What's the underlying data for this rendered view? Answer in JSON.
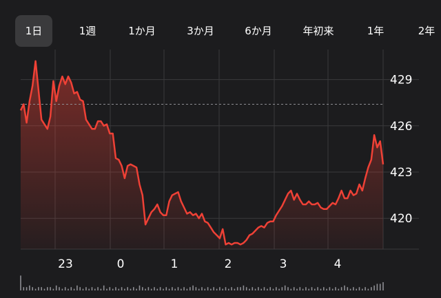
{
  "tabs": [
    {
      "label": "1日",
      "active": true
    },
    {
      "label": "1週"
    },
    {
      "label": "1か月"
    },
    {
      "label": "3か月"
    },
    {
      "label": "6か月"
    },
    {
      "label": "年初来"
    },
    {
      "label": "1年"
    },
    {
      "label": "2年"
    }
  ],
  "colors": {
    "background": "#1c1c1e",
    "line": "#ef4136",
    "grid": "#3a3a3c",
    "tab_active": "#3a3a3c",
    "volume": "#8e8e93"
  },
  "chart_data": {
    "type": "area",
    "title": "",
    "xlabel": "",
    "ylabel": "",
    "x_tick_labels": [
      "23",
      "0",
      "1",
      "2",
      "3",
      "4"
    ],
    "y_tick_labels": [
      "429",
      "426",
      "423",
      "420"
    ],
    "ylim": [
      418.0,
      430.5
    ],
    "reference_line": 427.4,
    "grid": true,
    "series": [
      {
        "values": [
          427.0,
          427.4,
          426.2,
          427.6,
          428.6,
          430.2,
          428.3,
          426.4,
          426.1,
          425.8,
          426.6,
          428.9,
          427.6,
          428.6,
          429.2,
          428.7,
          429.2,
          428.8,
          428.1,
          428.2,
          427.7,
          427.6,
          426.4,
          426.1,
          425.8,
          425.8,
          426.3,
          426.3,
          426.0,
          426.1,
          425.5,
          425.5,
          423.9,
          423.8,
          423.4,
          422.6,
          423.4,
          423.5,
          423.4,
          423.3,
          422.2,
          421.5,
          419.6,
          420.0,
          420.4,
          420.6,
          420.9,
          420.4,
          420.2,
          420.2,
          421.1,
          421.5,
          421.6,
          421.7,
          421.1,
          420.7,
          420.3,
          420.4,
          420.2,
          420.3,
          420.0,
          420.3,
          419.8,
          419.7,
          419.4,
          419.1,
          418.9,
          418.7,
          419.3,
          418.3,
          418.4,
          418.3,
          418.4,
          418.4,
          418.3,
          418.4,
          418.6,
          418.9,
          419.0,
          419.2,
          419.4,
          419.5,
          419.4,
          419.7,
          419.8,
          419.8,
          420.2,
          420.5,
          420.8,
          421.2,
          421.6,
          421.8,
          421.2,
          421.6,
          421.2,
          420.9,
          420.9,
          421.1,
          420.9,
          420.9,
          421.0,
          420.7,
          420.6,
          420.6,
          420.8,
          421.0,
          420.9,
          421.3,
          421.8,
          421.3,
          421.3,
          421.8,
          421.5,
          421.6,
          422.2,
          421.8,
          422.6,
          423.3,
          423.8,
          425.4,
          424.6,
          425.0,
          423.5
        ],
        "volume": [
          9,
          2,
          2,
          3,
          2,
          1,
          2,
          2,
          1,
          2,
          2,
          1,
          3,
          2,
          1,
          2,
          1,
          2,
          1,
          3,
          2,
          1,
          2,
          1,
          2,
          1,
          2,
          1,
          3,
          1,
          2,
          1,
          2,
          1,
          2,
          1,
          2,
          1,
          2,
          1,
          3,
          2,
          1,
          2,
          1,
          2,
          1,
          2,
          1,
          2,
          1,
          2,
          1,
          2,
          1,
          2,
          1,
          2,
          3,
          2,
          1,
          2,
          1,
          2,
          1,
          2,
          1,
          2,
          1,
          2,
          1,
          2,
          1,
          2,
          2,
          3,
          2,
          1,
          2,
          1,
          2,
          1,
          2,
          1,
          2,
          1,
          2,
          1,
          2,
          3,
          2,
          1,
          2,
          1,
          2,
          1,
          2,
          1,
          2,
          1,
          2,
          1,
          2,
          1,
          2,
          1,
          2,
          1,
          2,
          3,
          2,
          1,
          2,
          1,
          2,
          1,
          2,
          1,
          2,
          3,
          4,
          4,
          5
        ]
      }
    ]
  }
}
